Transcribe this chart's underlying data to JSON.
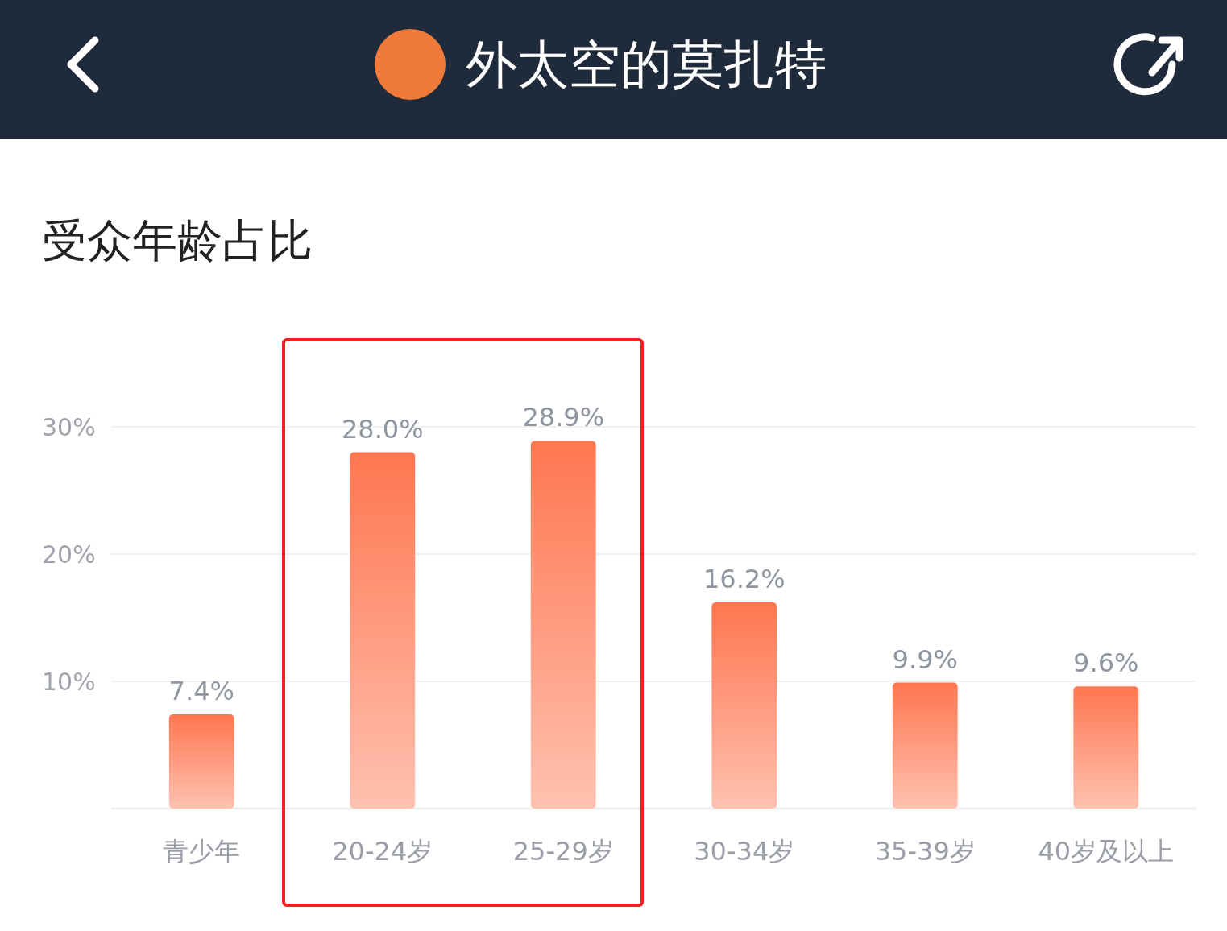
{
  "chart_data": {
    "type": "bar",
    "title": "受众年龄占比",
    "annotations": [
      "外太空的莫扎特"
    ],
    "categories": [
      "青少年",
      "20-24岁",
      "25-29岁",
      "30-34岁",
      "35-39岁",
      "40岁及以上"
    ],
    "values": [
      7.4,
      28.0,
      28.9,
      16.2,
      9.9,
      9.6
    ],
    "value_labels": [
      "7.4%",
      "28.0%",
      "28.9%",
      "16.2%",
      "9.9%",
      "9.6%"
    ],
    "color": "#ff7650",
    "ylim": [
      0,
      30
    ],
    "yticks": [
      {
        "value": 10,
        "label": "10%"
      },
      {
        "value": 20,
        "label": "20%"
      },
      {
        "value": 30,
        "label": "30%"
      }
    ],
    "grid": "y"
  }
}
